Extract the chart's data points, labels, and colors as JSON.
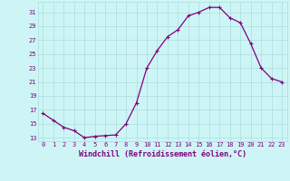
{
  "x": [
    0,
    1,
    2,
    3,
    4,
    5,
    6,
    7,
    8,
    9,
    10,
    11,
    12,
    13,
    14,
    15,
    16,
    17,
    18,
    19,
    20,
    21,
    22,
    23
  ],
  "y": [
    16.5,
    15.5,
    14.5,
    14.0,
    13.0,
    13.2,
    13.3,
    13.4,
    15.0,
    18.0,
    23.0,
    25.5,
    27.5,
    28.5,
    30.5,
    31.0,
    31.7,
    31.7,
    30.2,
    29.5,
    26.5,
    23.0,
    21.5,
    21.0
  ],
  "line_color": "#800080",
  "marker": "+",
  "markersize": 3,
  "linewidth": 0.9,
  "bg_color": "#cef5f5",
  "grid_color": "#aadddd",
  "xlabel": "Windchill (Refroidissement éolien,°C)",
  "xlabel_color": "#800080",
  "ytick_values": [
    13,
    15,
    17,
    19,
    21,
    23,
    25,
    27,
    29,
    31
  ],
  "ylim": [
    12.5,
    32.5
  ],
  "xlim": [
    -0.5,
    23.5
  ],
  "xtick_labels": [
    "0",
    "1",
    "2",
    "3",
    "4",
    "5",
    "6",
    "7",
    "8",
    "9",
    "10",
    "11",
    "12",
    "13",
    "14",
    "15",
    "16",
    "17",
    "18",
    "19",
    "20",
    "21",
    "22",
    "23"
  ],
  "tick_fontsize": 5,
  "xlabel_fontsize": 6,
  "xlabel_fontweight": "bold"
}
